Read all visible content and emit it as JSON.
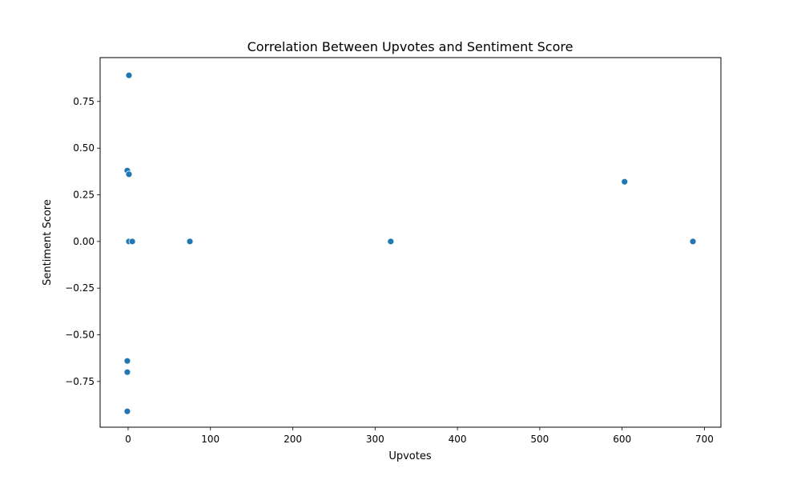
{
  "chart_data": {
    "type": "scatter",
    "title": "Correlation Between Upvotes and Sentiment Score",
    "xlabel": "Upvotes",
    "ylabel": "Sentiment Score",
    "xlim": [
      -34,
      720
    ],
    "ylim": [
      -0.995,
      0.985
    ],
    "xticks": [
      0,
      100,
      200,
      300,
      400,
      500,
      600,
      700
    ],
    "xtick_labels": [
      "0",
      "100",
      "200",
      "300",
      "400",
      "500",
      "600",
      "700"
    ],
    "yticks": [
      -0.75,
      -0.5,
      -0.25,
      0.0,
      0.25,
      0.5,
      0.75
    ],
    "ytick_labels": [
      "−0.75",
      "−0.50",
      "−0.25",
      "0.00",
      "0.25",
      "0.50",
      "0.75"
    ],
    "grid": false,
    "color": "#1f77b4",
    "points": [
      {
        "x": 1,
        "y": 0.89
      },
      {
        "x": -1,
        "y": 0.38
      },
      {
        "x": 1,
        "y": 0.36
      },
      {
        "x": 1,
        "y": 0.0
      },
      {
        "x": 5,
        "y": 0.0
      },
      {
        "x": 75,
        "y": 0.0
      },
      {
        "x": 319,
        "y": 0.0
      },
      {
        "x": 603,
        "y": 0.32
      },
      {
        "x": 686,
        "y": 0.0
      },
      {
        "x": -1,
        "y": -0.64
      },
      {
        "x": -1,
        "y": -0.7
      },
      {
        "x": -1,
        "y": -0.91
      }
    ]
  }
}
